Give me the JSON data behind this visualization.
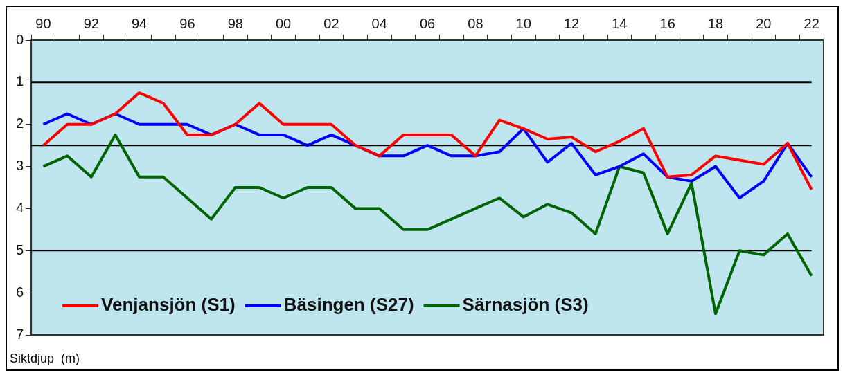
{
  "chart_data": {
    "type": "line",
    "ylabel": "Siktdjup  (m)",
    "categories": [
      "90",
      null,
      "92",
      null,
      "94",
      null,
      "96",
      null,
      "98",
      null,
      "00",
      null,
      "02",
      null,
      "04",
      null,
      "06",
      null,
      "08",
      null,
      "10",
      null,
      "12",
      null,
      "14",
      null,
      "16",
      null,
      "18",
      null,
      "20",
      null,
      "22"
    ],
    "series": [
      {
        "name": "Venjansjön (S1)",
        "color": "#ff0000",
        "values": [
          2.5,
          2.0,
          2.0,
          1.75,
          1.25,
          1.5,
          2.25,
          2.25,
          2.0,
          1.5,
          2.0,
          2.0,
          2.0,
          2.5,
          2.75,
          2.25,
          2.25,
          2.25,
          2.75,
          1.9,
          2.1,
          2.35,
          2.3,
          2.65,
          2.4,
          2.1,
          3.25,
          3.2,
          2.75,
          2.85,
          2.95,
          2.45,
          3.55
        ]
      },
      {
        "name": "Bäsingen (S27)",
        "color": "#0000ff",
        "values": [
          2.0,
          1.75,
          2.0,
          1.75,
          2.0,
          2.0,
          2.0,
          2.25,
          2.0,
          2.25,
          2.25,
          2.5,
          2.25,
          2.5,
          2.75,
          2.75,
          2.5,
          2.75,
          2.75,
          2.65,
          2.1,
          2.9,
          2.45,
          3.2,
          3.0,
          2.7,
          3.25,
          3.35,
          3.0,
          3.75,
          3.35,
          2.45,
          3.25
        ]
      },
      {
        "name": "Särnasjön (S3)",
        "color": "#006400",
        "values": [
          3.0,
          2.75,
          3.25,
          2.25,
          3.25,
          3.25,
          3.75,
          4.25,
          3.5,
          3.5,
          3.75,
          3.5,
          3.5,
          4.0,
          4.0,
          4.5,
          4.5,
          4.25,
          4.0,
          3.75,
          4.2,
          3.9,
          4.1,
          4.6,
          3.0,
          3.15,
          4.6,
          3.4,
          6.5,
          5.0,
          5.1,
          4.6,
          5.6
        ]
      }
    ],
    "ylim": [
      7,
      0
    ],
    "yticks": [
      0,
      1,
      2,
      3,
      4,
      5,
      6,
      7
    ],
    "ref_lines": [
      {
        "axis": "y",
        "value": 1,
        "color": "#000000"
      },
      {
        "axis": "y",
        "value": 2.5,
        "color": "#000000"
      },
      {
        "axis": "y",
        "value": 5,
        "color": "#000000"
      }
    ],
    "legend": "bottom left",
    "marker": "none",
    "line_style": "solid"
  }
}
